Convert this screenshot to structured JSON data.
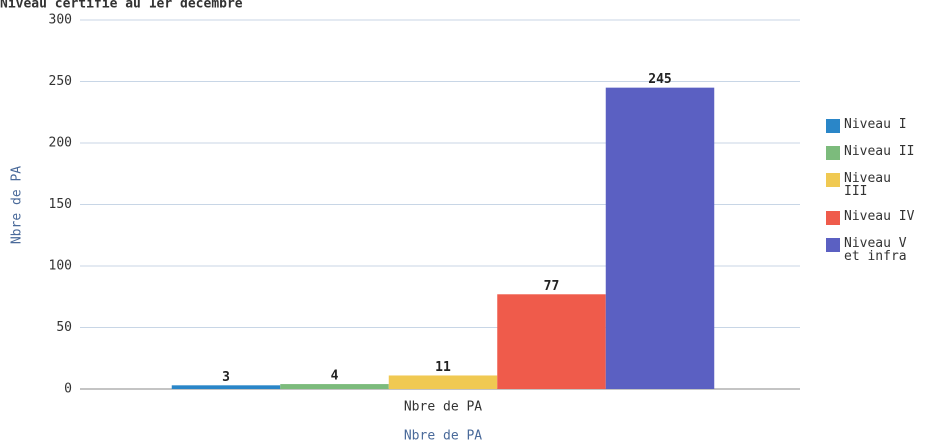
{
  "chart_data": {
    "type": "bar",
    "title": "Niveau certifié au 1er décembre",
    "y_axis_label": "Nbre de PA",
    "x_axis_label": "Nbre de PA",
    "categories": [
      "Nbre de PA"
    ],
    "series": [
      {
        "name": "Niveau I",
        "color": "#2a86c8",
        "values": [
          3
        ]
      },
      {
        "name": "Niveau II",
        "color": "#7cbb7c",
        "values": [
          4
        ]
      },
      {
        "name": "Niveau III",
        "color": "#f0c952",
        "values": [
          11
        ]
      },
      {
        "name": "Niveau IV",
        "color": "#ef5b4b",
        "values": [
          77
        ]
      },
      {
        "name": "Niveau V et infra",
        "color": "#5b60c2",
        "values": [
          245
        ]
      }
    ],
    "ylim": [
      0,
      300
    ],
    "yticks": [
      0,
      50,
      100,
      150,
      200,
      250,
      300
    ],
    "grid": true,
    "legend": "right"
  }
}
